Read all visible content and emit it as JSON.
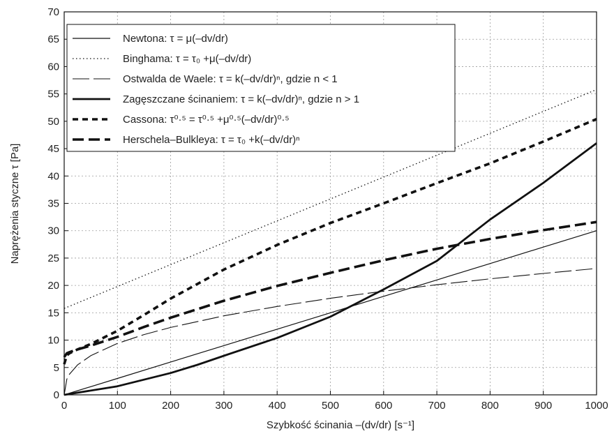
{
  "chart_data": {
    "type": "line",
    "xlabel": "Szybkość ścinania –(dv/dr) [s⁻¹]",
    "ylabel": "Naprężenia styczne τ  [Pa]",
    "xlim": [
      0,
      1000
    ],
    "ylim": [
      0,
      70
    ],
    "x_ticks": [
      "0",
      "100",
      "200",
      "300",
      "400",
      "500",
      "600",
      "700",
      "800",
      "900",
      "1000"
    ],
    "y_ticks": [
      "0",
      "5",
      "10",
      "15",
      "20",
      "25",
      "30",
      "35",
      "40",
      "45",
      "50",
      "55",
      "60",
      "65",
      "70"
    ],
    "grid": true,
    "legend_position": "top-left",
    "series": [
      {
        "name": "Newtona:  τ = μ(–dv/dr)",
        "style": "solid-thin",
        "x": [
          0,
          100,
          200,
          300,
          400,
          500,
          600,
          700,
          800,
          900,
          1000
        ],
        "y": [
          0,
          3,
          6,
          9,
          12,
          15,
          18,
          21,
          24,
          27,
          30
        ]
      },
      {
        "name": "Binghama:  τ = τ₀ +μ(–dv/dr)",
        "style": "dotted",
        "x": [
          0,
          100,
          200,
          300,
          400,
          500,
          600,
          700,
          800,
          900,
          1000
        ],
        "y": [
          15.8,
          19.8,
          23.8,
          27.8,
          31.8,
          35.8,
          39.8,
          43.8,
          47.8,
          51.8,
          55.8
        ]
      },
      {
        "name": "Ostwalda de Waele:  τ = k(–dv/dr)ⁿ, gdzie n < 1",
        "style": "long-dash-thin",
        "x": [
          0,
          5,
          10,
          25,
          50,
          100,
          150,
          200,
          300,
          400,
          500,
          600,
          700,
          800,
          900,
          1000
        ],
        "y": [
          0,
          2.87,
          3.77,
          5.47,
          7.17,
          9.4,
          11.02,
          12.32,
          14.45,
          16.15,
          17.65,
          18.95,
          20.12,
          21.2,
          22.18,
          23.1
        ]
      },
      {
        "name": "Zagęszczane ścinaniem:  τ = k(–dv/dr)ⁿ, gdzie n > 1",
        "style": "solid-thick",
        "x": [
          0,
          100,
          200,
          250,
          300,
          400,
          500,
          600,
          700,
          800,
          900,
          1000
        ],
        "y": [
          0,
          1.57,
          3.99,
          5.48,
          7.14,
          10.41,
          14.28,
          19.26,
          24.48,
          32.04,
          38.75,
          46.0
        ]
      },
      {
        "name": "Cassona:  τ⁰·⁵ = τ⁰·⁵ +μ⁰·⁵(–dv/dr)⁰·⁵",
        "style": "short-dash-thick",
        "x": [
          0,
          5,
          10,
          25,
          50,
          100,
          150,
          200,
          300,
          400,
          500,
          600,
          700,
          800,
          900,
          1000
        ],
        "y": [
          5.6,
          7.2,
          7.6,
          8.3,
          9.3,
          11.7,
          14.6,
          17.6,
          22.9,
          27.4,
          31.4,
          35.0,
          38.7,
          42.3,
          46.3,
          50.4
        ]
      },
      {
        "name": "Herschela–Bulkleya:  τ = τ₀ +k(–dv/dr)ⁿ",
        "style": "long-dash-thick",
        "x": [
          0,
          5,
          10,
          25,
          50,
          100,
          150,
          200,
          300,
          400,
          500,
          600,
          700,
          800,
          900,
          1000
        ],
        "y": [
          6.9,
          7.6,
          7.8,
          8.3,
          9.0,
          10.6,
          12.4,
          14.1,
          17.2,
          19.9,
          22.3,
          24.6,
          26.7,
          28.5,
          30.1,
          31.6
        ]
      }
    ]
  },
  "legend": {
    "items": [
      "Newtona:  τ = μ(–dv/dr)",
      "Binghama:  τ = τ₀ +μ(–dv/dr)",
      "Ostwalda de Waele:  τ = k(–dv/dr)ⁿ, gdzie n < 1",
      "Zagęszczane ścinaniem:  τ = k(–dv/dr)ⁿ, gdzie n > 1",
      "Cassona:  τ⁰·⁵ = τ⁰·⁵ +μ⁰·⁵(–dv/dr)⁰·⁵",
      "Herschela–Bulkleya:  τ = τ₀ +k(–dv/dr)ⁿ"
    ]
  }
}
